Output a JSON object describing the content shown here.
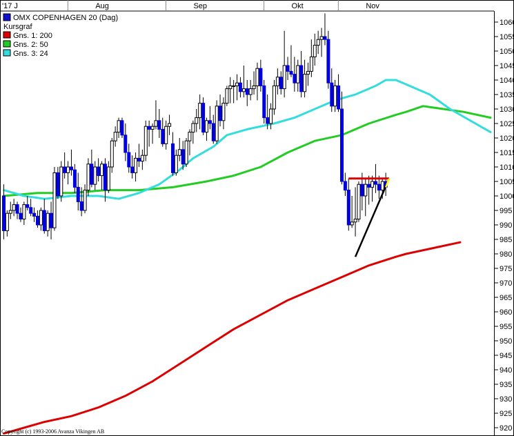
{
  "chart_data": {
    "type": "candlestick",
    "title": "OMX COPENHAGEN 20 (Dag)",
    "legend_heading": "Kursgraf",
    "legend_placement": "top-left",
    "y_axis_side": "right",
    "ylim": [
      917,
      1065
    ],
    "y_ticks": [
      920,
      925,
      930,
      935,
      940,
      945,
      950,
      955,
      960,
      965,
      970,
      975,
      980,
      985,
      990,
      995,
      1000,
      1005,
      1010,
      1015,
      1020,
      1025,
      1030,
      1035,
      1040,
      1045,
      1050,
      1055,
      1060
    ],
    "x_count": 120,
    "x_labels": [
      {
        "label": "'17 J",
        "index": 0
      },
      {
        "label": "Aug",
        "index": 21
      },
      {
        "label": "Sep",
        "index": 50
      },
      {
        "label": "Okt",
        "index": 79
      },
      {
        "label": "Nov",
        "index": 101
      }
    ],
    "up_color": "#ffffff",
    "down_color": "#0000e0",
    "copyright": "Copyright (c) 1993-2006 Avanza Vikingen AB",
    "candles": [
      [
        1000,
        1004,
        985,
        988
      ],
      [
        988,
        995,
        986,
        994
      ],
      [
        994,
        998,
        992,
        995
      ],
      [
        995,
        999,
        993,
        997
      ],
      [
        997,
        998,
        992,
        994
      ],
      [
        994,
        996,
        991,
        992
      ],
      [
        992,
        998,
        990,
        997
      ],
      [
        997,
        1000,
        995,
        996
      ],
      [
        996,
        999,
        993,
        994
      ],
      [
        994,
        996,
        991,
        993
      ],
      [
        993,
        995,
        989,
        990
      ],
      [
        990,
        996,
        988,
        995
      ],
      [
        995,
        999,
        987,
        988
      ],
      [
        988,
        995,
        986,
        994
      ],
      [
        994,
        998,
        985,
        989
      ],
      [
        989,
        1010,
        988,
        1008
      ],
      [
        1008,
        1010,
        999,
        1000
      ],
      [
        1000,
        1012,
        998,
        1010
      ],
      [
        1010,
        1015,
        1006,
        1008
      ],
      [
        1008,
        1012,
        1004,
        1010
      ],
      [
        1010,
        1016,
        1007,
        1009
      ],
      [
        1009,
        1011,
        1001,
        1003
      ],
      [
        1003,
        1008,
        995,
        998
      ],
      [
        998,
        1003,
        993,
        995
      ],
      [
        995,
        1004,
        994,
        1002
      ],
      [
        1002,
        1013,
        1000,
        1011
      ],
      [
        1011,
        1016,
        1003,
        1004
      ],
      [
        1004,
        1012,
        1002,
        1010
      ],
      [
        1010,
        1013,
        1005,
        1007
      ],
      [
        1007,
        1012,
        1002,
        1011
      ],
      [
        1011,
        1013,
        998,
        1002
      ],
      [
        1002,
        1012,
        1001,
        1010
      ],
      [
        1010,
        1020,
        1008,
        1019
      ],
      [
        1019,
        1024,
        1017,
        1022
      ],
      [
        1022,
        1027,
        1020,
        1026
      ],
      [
        1026,
        1027,
        1020,
        1021
      ],
      [
        1021,
        1025,
        1012,
        1015
      ],
      [
        1015,
        1018,
        1008,
        1010
      ],
      [
        1010,
        1014,
        1006,
        1008
      ],
      [
        1008,
        1015,
        1005,
        1013
      ],
      [
        1013,
        1018,
        1010,
        1012
      ],
      [
        1012,
        1016,
        1009,
        1014
      ],
      [
        1014,
        1026,
        1012,
        1024
      ],
      [
        1024,
        1026,
        1017,
        1023
      ],
      [
        1023,
        1025,
        1018,
        1024
      ],
      [
        1024,
        1033,
        1023,
        1026
      ],
      [
        1026,
        1030,
        1020,
        1023
      ],
      [
        1023,
        1027,
        1017,
        1018
      ],
      [
        1018,
        1026,
        1016,
        1024
      ],
      [
        1024,
        1028,
        1021,
        1025
      ],
      [
        1018,
        1022,
        1007,
        1008
      ],
      [
        1008,
        1016,
        1007,
        1014
      ],
      [
        1014,
        1020,
        1012,
        1016
      ],
      [
        1016,
        1019,
        1009,
        1011
      ],
      [
        1011,
        1020,
        1010,
        1019
      ],
      [
        1019,
        1023,
        1014,
        1022
      ],
      [
        1022,
        1026,
        1018,
        1025
      ],
      [
        1025,
        1030,
        1022,
        1027
      ],
      [
        1027,
        1035,
        1023,
        1032
      ],
      [
        1032,
        1034,
        1021,
        1022
      ],
      [
        1022,
        1027,
        1019,
        1026
      ],
      [
        1026,
        1031,
        1023,
        1025
      ],
      [
        1025,
        1028,
        1018,
        1019
      ],
      [
        1019,
        1033,
        1018,
        1031
      ],
      [
        1031,
        1035,
        1024,
        1026
      ],
      [
        1026,
        1034,
        1023,
        1032
      ],
      [
        1032,
        1038,
        1031,
        1037
      ],
      [
        1037,
        1041,
        1032,
        1038
      ],
      [
        1038,
        1040,
        1032,
        1038
      ],
      [
        1038,
        1042,
        1033,
        1039
      ],
      [
        1039,
        1041,
        1034,
        1036
      ],
      [
        1036,
        1045,
        1034,
        1037
      ],
      [
        1037,
        1040,
        1031,
        1035
      ],
      [
        1035,
        1040,
        1033,
        1037
      ],
      [
        1037,
        1043,
        1035,
        1038
      ],
      [
        1038,
        1046,
        1033,
        1044
      ],
      [
        1044,
        1047,
        1036,
        1038
      ],
      [
        1038,
        1040,
        1025,
        1027
      ],
      [
        1027,
        1035,
        1023,
        1025
      ],
      [
        1025,
        1032,
        1023,
        1030
      ],
      [
        1030,
        1040,
        1028,
        1038
      ],
      [
        1038,
        1044,
        1035,
        1041
      ],
      [
        1041,
        1043,
        1035,
        1037
      ],
      [
        1037,
        1057,
        1034,
        1045
      ],
      [
        1045,
        1048,
        1040,
        1043
      ],
      [
        1043,
        1052,
        1041,
        1042
      ],
      [
        1042,
        1048,
        1036,
        1039
      ],
      [
        1039,
        1047,
        1036,
        1045
      ],
      [
        1045,
        1050,
        1034,
        1036
      ],
      [
        1036,
        1047,
        1034,
        1042
      ],
      [
        1042,
        1046,
        1038,
        1043
      ],
      [
        1043,
        1054,
        1041,
        1048
      ],
      [
        1048,
        1056,
        1045,
        1052
      ],
      [
        1052,
        1057,
        1049,
        1054
      ],
      [
        1054,
        1058,
        1048,
        1055
      ],
      [
        1055,
        1063,
        1052,
        1054
      ],
      [
        1054,
        1057,
        1037,
        1039
      ],
      [
        1039,
        1044,
        1029,
        1031
      ],
      [
        1031,
        1040,
        1029,
        1038
      ],
      [
        1038,
        1042,
        1029,
        1030
      ],
      [
        1030,
        1036,
        1004,
        1005
      ],
      [
        1005,
        1008,
        1000,
        1002
      ],
      [
        1002,
        1006,
        988,
        990
      ],
      [
        990,
        1000,
        989,
        991
      ],
      [
        991,
        1003,
        986,
        992
      ],
      [
        992,
        1005,
        991,
        1004
      ],
      [
        1004,
        1008,
        995,
        1000
      ],
      [
        1000,
        1006,
        993,
        1004
      ],
      [
        1004,
        1007,
        997,
        1003
      ],
      [
        1003,
        1007,
        998,
        1005
      ],
      [
        1005,
        1011,
        1001,
        1004
      ],
      [
        1004,
        1007,
        999,
        1002
      ],
      [
        1002,
        1006,
        999,
        1005
      ],
      [
        1005,
        1008,
        1000,
        1003
      ]
    ],
    "series": [
      {
        "name": "Gns. 1: 200",
        "color": "#dd0000",
        "values": [
          [
            0,
            918
          ],
          [
            6,
            920
          ],
          [
            12,
            922
          ],
          [
            20,
            924
          ],
          [
            28,
            927
          ],
          [
            36,
            931
          ],
          [
            44,
            936
          ],
          [
            52,
            942
          ],
          [
            60,
            948
          ],
          [
            68,
            954
          ],
          [
            76,
            959
          ],
          [
            84,
            964
          ],
          [
            92,
            968
          ],
          [
            100,
            972
          ],
          [
            108,
            976
          ],
          [
            116,
            979
          ],
          [
            119,
            980
          ],
          [
            127,
            982
          ],
          [
            135,
            984
          ]
        ]
      },
      {
        "name": "Gns. 2: 50",
        "color": "#22cc22",
        "values": [
          [
            0,
            1000
          ],
          [
            10,
            1001
          ],
          [
            20,
            1001
          ],
          [
            30,
            1002
          ],
          [
            40,
            1002
          ],
          [
            50,
            1003
          ],
          [
            60,
            1005
          ],
          [
            68,
            1007
          ],
          [
            76,
            1010
          ],
          [
            84,
            1015
          ],
          [
            92,
            1019
          ],
          [
            100,
            1021
          ],
          [
            108,
            1025
          ],
          [
            116,
            1028
          ],
          [
            119,
            1029
          ],
          [
            124,
            1031
          ],
          [
            130,
            1030
          ],
          [
            136,
            1029
          ],
          [
            144,
            1027
          ]
        ]
      },
      {
        "name": "Gns. 3: 24",
        "color": "#33dddd",
        "values": [
          [
            0,
            1002
          ],
          [
            6,
            1000
          ],
          [
            12,
            999
          ],
          [
            20,
            1000
          ],
          [
            28,
            1000
          ],
          [
            34,
            999
          ],
          [
            40,
            1001
          ],
          [
            46,
            1004
          ],
          [
            52,
            1009
          ],
          [
            56,
            1013
          ],
          [
            62,
            1017
          ],
          [
            66,
            1021
          ],
          [
            72,
            1023
          ],
          [
            80,
            1025
          ],
          [
            86,
            1027
          ],
          [
            92,
            1030
          ],
          [
            98,
            1033
          ],
          [
            104,
            1035
          ],
          [
            110,
            1038
          ],
          [
            113,
            1040
          ],
          [
            116,
            1040
          ],
          [
            120,
            1038
          ],
          [
            126,
            1035
          ],
          [
            132,
            1030
          ],
          [
            138,
            1026
          ],
          [
            144,
            1022
          ]
        ]
      }
    ],
    "annotations": [
      {
        "type": "horizontal-line",
        "color": "#dd0000",
        "y": 1006,
        "x_from": 102,
        "x_to": 114
      },
      {
        "type": "trend-line",
        "color": "#000000",
        "from": [
          104,
          979
        ],
        "to": [
          114,
          1006
        ]
      },
      {
        "type": "trend-line",
        "color": "#ffff00",
        "from": [
          113,
          1003
        ],
        "to": [
          114,
          1006
        ]
      }
    ]
  }
}
